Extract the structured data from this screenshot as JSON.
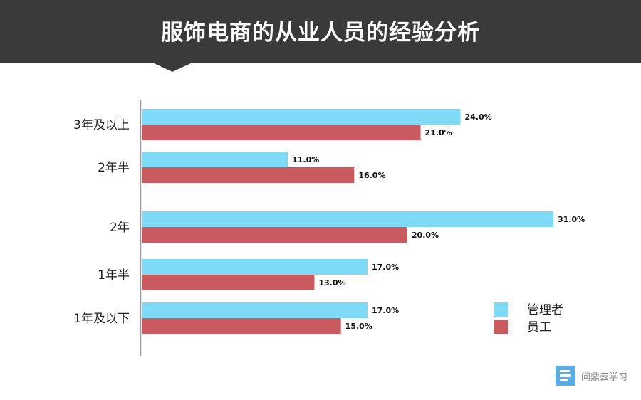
{
  "header": {
    "title": "服饰电商的从业人员的经验分析"
  },
  "chart_data": {
    "type": "bar",
    "orientation": "horizontal",
    "title": "服饰电商的从业人员的经验分析",
    "categories": [
      "3年及以上",
      "2年半",
      "2年",
      "1年半",
      "1年及以下"
    ],
    "series": [
      {
        "name": "管理者",
        "color": "#7fdaf7",
        "values": [
          24.0,
          11.0,
          31.0,
          17.0,
          17.0
        ],
        "labels": [
          "24.0%",
          "11.0%",
          "31.0%",
          "17.0%",
          "17.0%"
        ]
      },
      {
        "name": "员工",
        "color": "#c95b60",
        "values": [
          21.0,
          16.0,
          20.0,
          13.0,
          15.0
        ],
        "labels": [
          "21.0%",
          "16.0%",
          "20.0%",
          "13.0%",
          "15.0%"
        ]
      }
    ],
    "unit": "%",
    "xlim": [
      0,
      31
    ],
    "grid": false,
    "legend_position": "bottom-right"
  },
  "branding": {
    "text": "问鼎云学习",
    "icon": "brand-logo-icon"
  }
}
